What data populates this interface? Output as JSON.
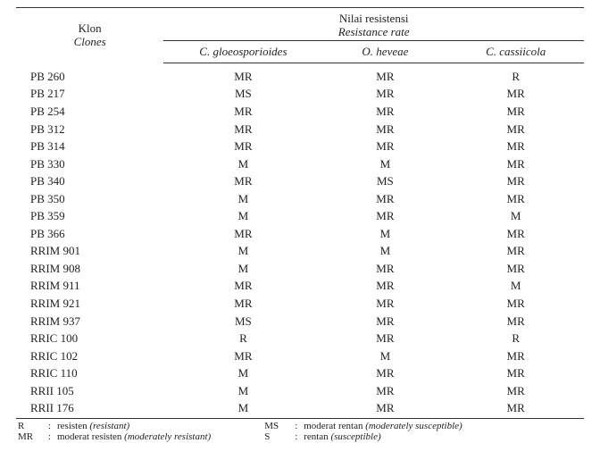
{
  "header": {
    "klon": "Klon",
    "klon_en": "Clones",
    "group": "Nilai resistensi",
    "group_en": "Resistance rate",
    "cols": [
      "C. gloeosporioides",
      "O. heveae",
      "C. cassiicola"
    ]
  },
  "rows": [
    {
      "clone": "PB 260",
      "v": [
        "MR",
        "MR",
        "R"
      ]
    },
    {
      "clone": "PB 217",
      "v": [
        "MS",
        "MR",
        "MR"
      ]
    },
    {
      "clone": "PB 254",
      "v": [
        "MR",
        "MR",
        "MR"
      ]
    },
    {
      "clone": "PB 312",
      "v": [
        "MR",
        "MR",
        "MR"
      ]
    },
    {
      "clone": "PB 314",
      "v": [
        "MR",
        "MR",
        "MR"
      ]
    },
    {
      "clone": "PB 330",
      "v": [
        "M",
        "M",
        "MR"
      ]
    },
    {
      "clone": "PB 340",
      "v": [
        "MR",
        "MS",
        "MR"
      ]
    },
    {
      "clone": "PB 350",
      "v": [
        "M",
        "MR",
        "MR"
      ]
    },
    {
      "clone": "PB 359",
      "v": [
        "M",
        "MR",
        "M"
      ]
    },
    {
      "clone": "PB 366",
      "v": [
        "MR",
        "M",
        "MR"
      ]
    },
    {
      "clone": "RRIM 901",
      "v": [
        "M",
        "M",
        "MR"
      ]
    },
    {
      "clone": "RRIM 908",
      "v": [
        "M",
        "MR",
        "MR"
      ]
    },
    {
      "clone": "RRIM 911",
      "v": [
        "MR",
        "MR",
        "M"
      ]
    },
    {
      "clone": "RRIM 921",
      "v": [
        "MR",
        "MR",
        "MR"
      ]
    },
    {
      "clone": "RRIM 937",
      "v": [
        "MS",
        "MR",
        "MR"
      ]
    },
    {
      "clone": "RRIC 100",
      "v": [
        "R",
        "MR",
        "R"
      ]
    },
    {
      "clone": "RRIC 102",
      "v": [
        "MR",
        "M",
        "MR"
      ]
    },
    {
      "clone": "RRIC 110",
      "v": [
        "M",
        "MR",
        "MR"
      ]
    },
    {
      "clone": "RRII 105",
      "v": [
        "M",
        "MR",
        "MR"
      ]
    },
    {
      "clone": "RRII 176",
      "v": [
        "M",
        "MR",
        "MR"
      ]
    }
  ],
  "legend": {
    "left": [
      {
        "key": "R",
        "text": "resisten ",
        "it": "(resistant)"
      },
      {
        "key": "MR",
        "text": "moderat resisten ",
        "it": "(moderately resistant)"
      }
    ],
    "right": [
      {
        "key": "MS",
        "text": "moderat rentan ",
        "it": "(moderately susceptible)"
      },
      {
        "key": "S",
        "text": "rentan ",
        "it": "(susceptible)"
      }
    ]
  }
}
